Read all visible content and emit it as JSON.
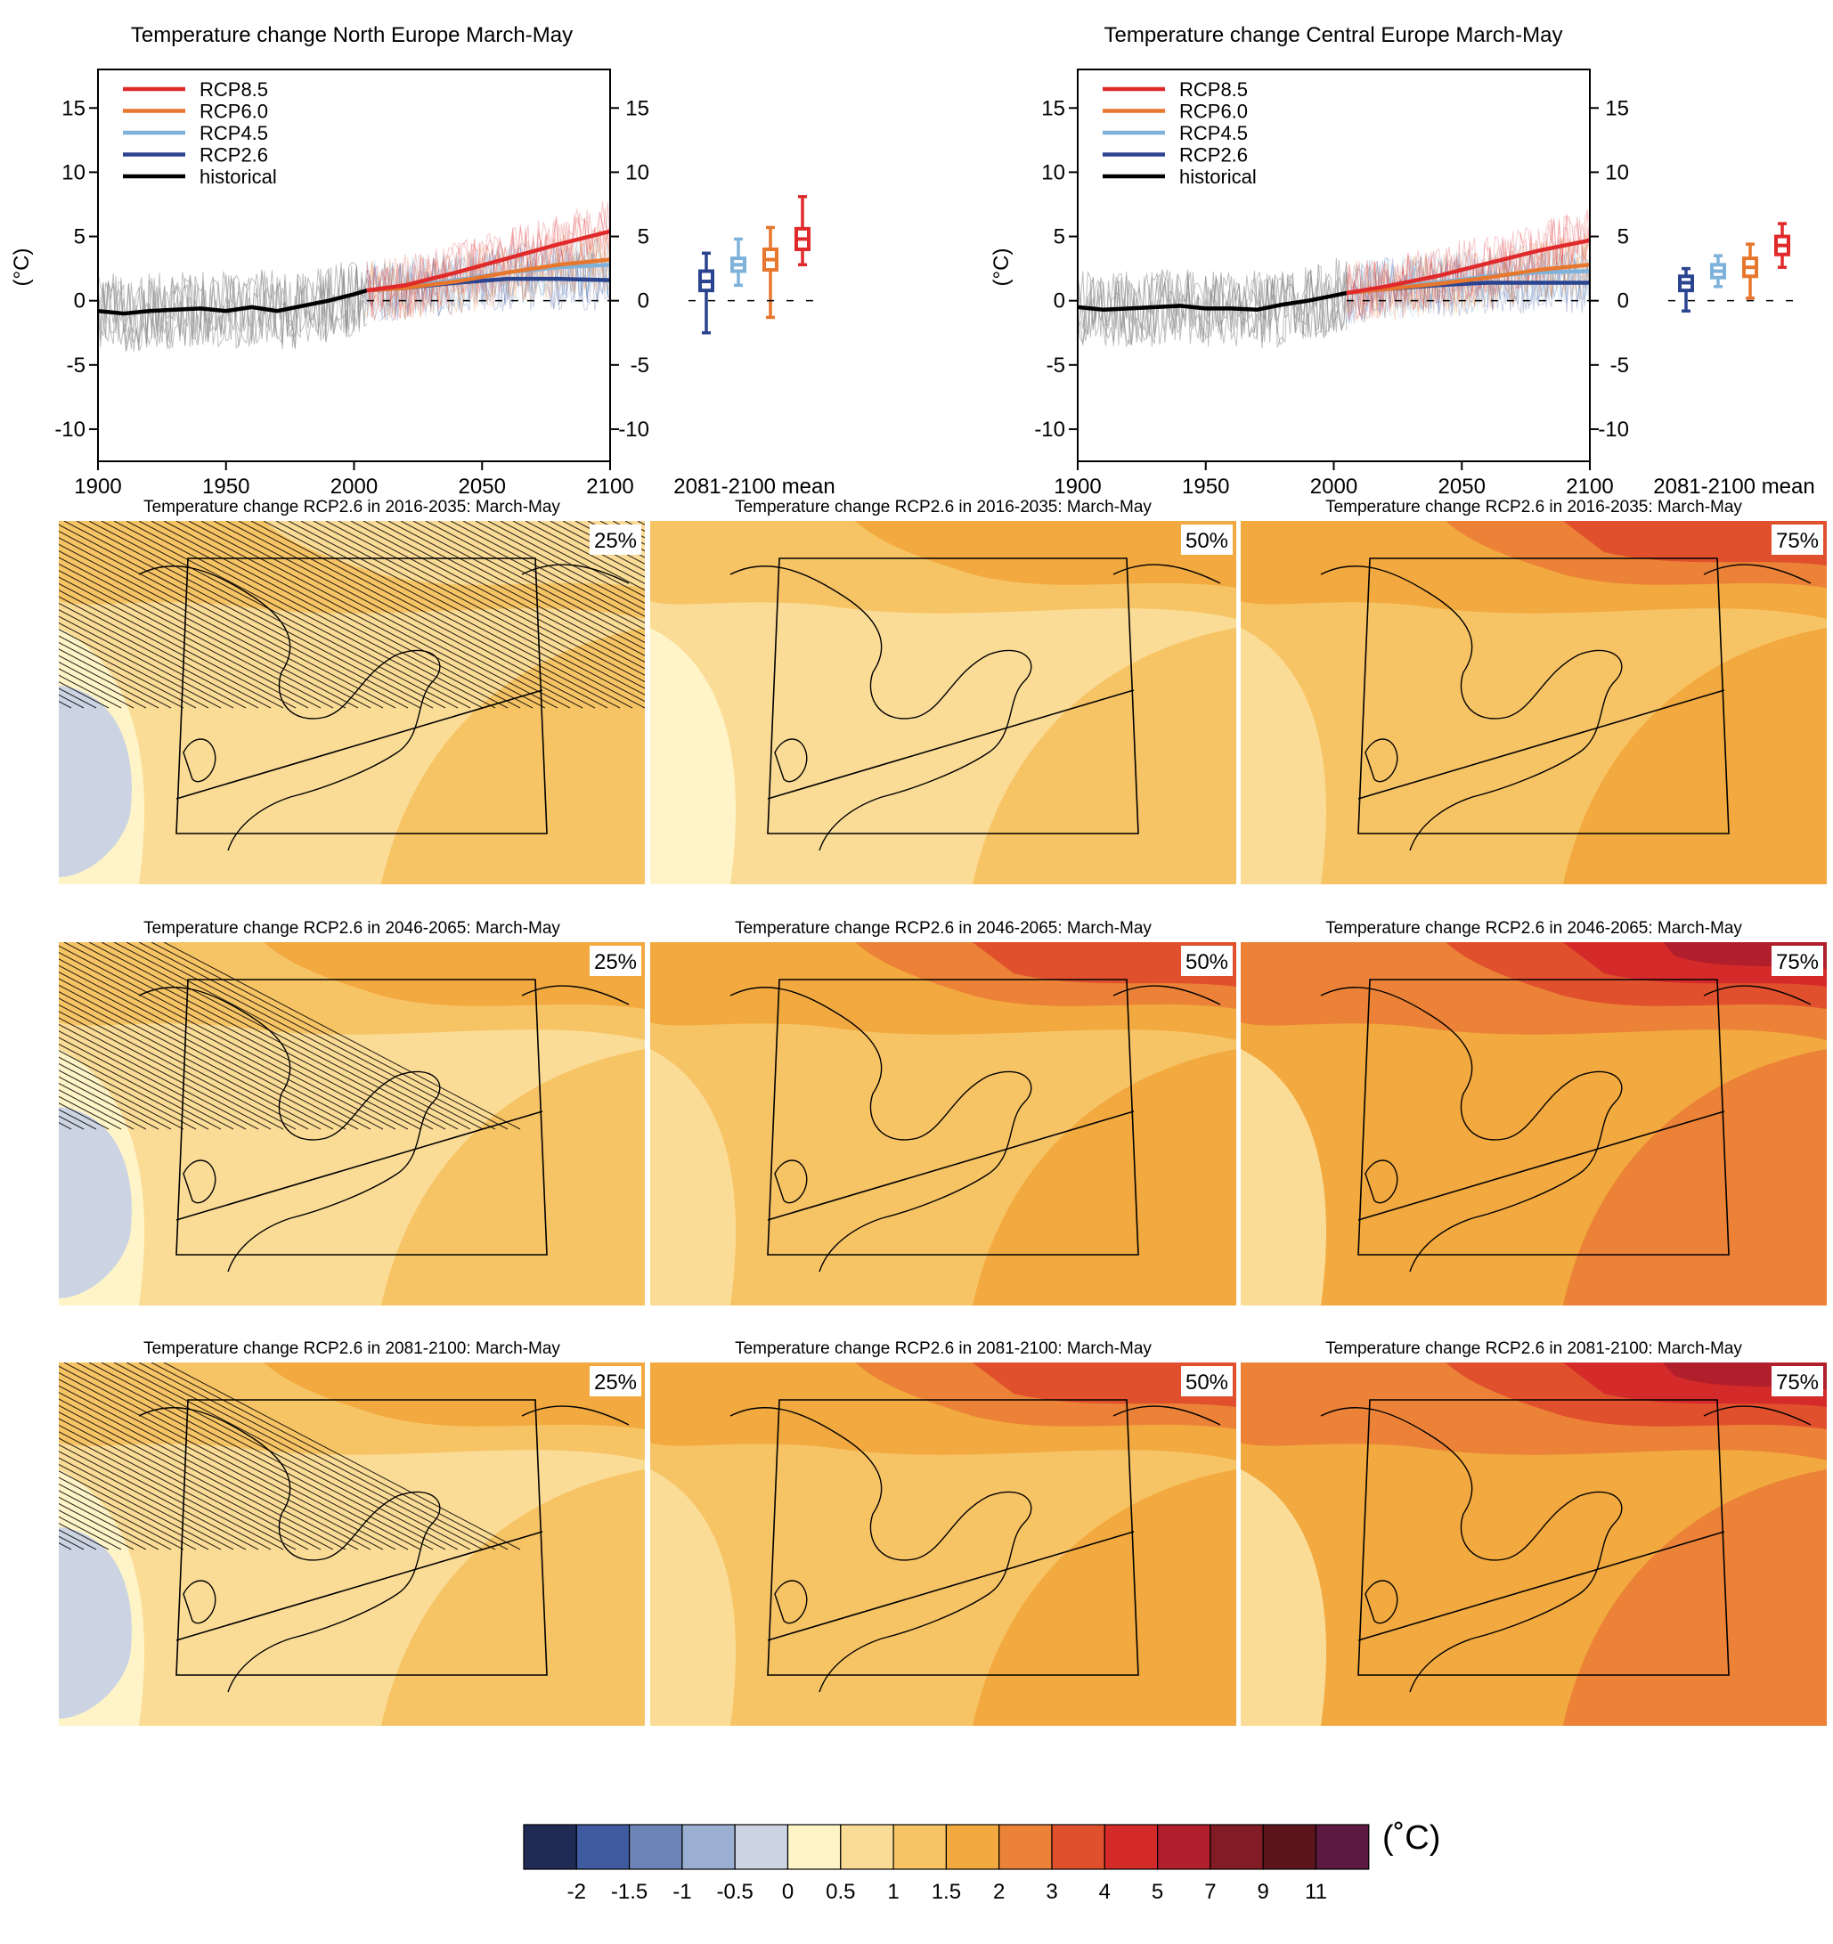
{
  "chart_data": [
    {
      "type": "line",
      "title": "Temperature change North Europe March-May",
      "ylabel": "(°C)",
      "xlabel": "",
      "x_ticks": [
        "1900",
        "1950",
        "2000",
        "2050",
        "2100"
      ],
      "y_ticks": [
        "15",
        "10",
        "5",
        "0",
        "-5",
        "-10"
      ],
      "xlim": [
        1900,
        2100
      ],
      "ylim": [
        -12.5,
        18
      ],
      "legend_position": "top-left",
      "legend": [
        "RCP8.5",
        "RCP6.0",
        "RCP4.5",
        "RCP2.6",
        "historical"
      ],
      "series": [
        {
          "name": "historical",
          "color": "#000000",
          "x": [
            1900,
            1910,
            1920,
            1930,
            1940,
            1950,
            1960,
            1970,
            1980,
            1990,
            2000,
            2005
          ],
          "y": [
            -0.8,
            -1.0,
            -0.8,
            -0.7,
            -0.6,
            -0.8,
            -0.5,
            -0.8,
            -0.4,
            0.0,
            0.5,
            0.8
          ]
        },
        {
          "name": "RCP2.6",
          "color": "#2b4490",
          "x": [
            2005,
            2020,
            2040,
            2060,
            2080,
            2100
          ],
          "y": [
            0.8,
            1.0,
            1.4,
            1.7,
            1.7,
            1.6
          ]
        },
        {
          "name": "RCP4.5",
          "color": "#7fb2da",
          "x": [
            2005,
            2020,
            2040,
            2060,
            2080,
            2100
          ],
          "y": [
            0.8,
            1.1,
            1.6,
            2.2,
            2.6,
            2.8
          ]
        },
        {
          "name": "RCP6.0",
          "color": "#e8772e",
          "x": [
            2005,
            2020,
            2040,
            2060,
            2080,
            2100
          ],
          "y": [
            0.8,
            1.0,
            1.5,
            2.2,
            2.8,
            3.2
          ]
        },
        {
          "name": "RCP8.5",
          "color": "#e0292b",
          "x": [
            2005,
            2020,
            2040,
            2060,
            2080,
            2100
          ],
          "y": [
            0.8,
            1.2,
            2.2,
            3.3,
            4.4,
            5.4
          ]
        }
      ],
      "boxplot_label": "2081-2100 mean",
      "boxplots": [
        {
          "name": "RCP2.6",
          "color": "#2b4490",
          "min": -2.5,
          "q1": 0.8,
          "median": 1.5,
          "q3": 2.3,
          "max": 3.7
        },
        {
          "name": "RCP4.5",
          "color": "#7fb2da",
          "min": 1.2,
          "q1": 2.3,
          "median": 2.8,
          "q3": 3.3,
          "max": 4.8
        },
        {
          "name": "RCP6.0",
          "color": "#e8772e",
          "min": -1.3,
          "q1": 2.4,
          "median": 3.2,
          "q3": 4.0,
          "max": 5.7
        },
        {
          "name": "RCP8.5",
          "color": "#e0292b",
          "min": 2.8,
          "q1": 4.0,
          "median": 4.8,
          "q3": 5.6,
          "max": 8.1
        }
      ]
    },
    {
      "type": "line",
      "title": "Temperature change Central Europe March-May",
      "ylabel": "(°C)",
      "xlabel": "",
      "x_ticks": [
        "1900",
        "1950",
        "2000",
        "2050",
        "2100"
      ],
      "y_ticks": [
        "15",
        "10",
        "5",
        "0",
        "-5",
        "-10"
      ],
      "xlim": [
        1900,
        2100
      ],
      "ylim": [
        -12.5,
        18
      ],
      "legend_position": "top-left",
      "legend": [
        "RCP8.5",
        "RCP6.0",
        "RCP4.5",
        "RCP2.6",
        "historical"
      ],
      "series": [
        {
          "name": "historical",
          "color": "#000000",
          "x": [
            1900,
            1910,
            1920,
            1930,
            1940,
            1950,
            1960,
            1970,
            1980,
            1990,
            2000,
            2005
          ],
          "y": [
            -0.5,
            -0.7,
            -0.6,
            -0.5,
            -0.4,
            -0.6,
            -0.6,
            -0.7,
            -0.3,
            0.0,
            0.4,
            0.6
          ]
        },
        {
          "name": "RCP2.6",
          "color": "#2b4490",
          "x": [
            2005,
            2020,
            2040,
            2060,
            2080,
            2100
          ],
          "y": [
            0.6,
            0.9,
            1.2,
            1.4,
            1.4,
            1.4
          ]
        },
        {
          "name": "RCP4.5",
          "color": "#7fb2da",
          "x": [
            2005,
            2020,
            2040,
            2060,
            2080,
            2100
          ],
          "y": [
            0.6,
            1.0,
            1.4,
            1.9,
            2.2,
            2.3
          ]
        },
        {
          "name": "RCP6.0",
          "color": "#e8772e",
          "x": [
            2005,
            2020,
            2040,
            2060,
            2080,
            2100
          ],
          "y": [
            0.6,
            0.9,
            1.3,
            1.8,
            2.4,
            2.8
          ]
        },
        {
          "name": "RCP8.5",
          "color": "#e0292b",
          "x": [
            2005,
            2020,
            2040,
            2060,
            2080,
            2100
          ],
          "y": [
            0.6,
            1.1,
            1.9,
            2.9,
            3.9,
            4.7
          ]
        }
      ],
      "boxplot_label": "2081-2100 mean",
      "boxplots": [
        {
          "name": "RCP2.6",
          "color": "#2b4490",
          "min": -0.8,
          "q1": 0.8,
          "median": 1.4,
          "q3": 1.9,
          "max": 2.5
        },
        {
          "name": "RCP4.5",
          "color": "#7fb2da",
          "min": 1.1,
          "q1": 1.8,
          "median": 2.3,
          "q3": 2.8,
          "max": 3.5
        },
        {
          "name": "RCP6.0",
          "color": "#e8772e",
          "min": 0.2,
          "q1": 1.9,
          "median": 2.6,
          "q3": 3.3,
          "max": 4.4
        },
        {
          "name": "RCP8.5",
          "color": "#e0292b",
          "min": 2.6,
          "q1": 3.6,
          "median": 4.3,
          "q3": 5.0,
          "max": 6.0
        }
      ]
    },
    {
      "type": "heatmap",
      "panels": [
        {
          "title": "Temperature change RCP2.6 in 2016-2035: March-May",
          "percentile": "25%",
          "level": 0
        },
        {
          "title": "Temperature change RCP2.6 in 2016-2035: March-May",
          "percentile": "50%",
          "level": 1
        },
        {
          "title": "Temperature change RCP2.6 in 2016-2035: March-May",
          "percentile": "75%",
          "level": 2
        },
        {
          "title": "Temperature change RCP2.6 in 2046-2065: March-May",
          "percentile": "25%",
          "level": 1
        },
        {
          "title": "Temperature change RCP2.6 in 2046-2065: March-May",
          "percentile": "50%",
          "level": 2
        },
        {
          "title": "Temperature change RCP2.6 in 2046-2065: March-May",
          "percentile": "75%",
          "level": 3
        },
        {
          "title": "Temperature change RCP2.6 in 2081-2100: March-May",
          "percentile": "25%",
          "level": 1
        },
        {
          "title": "Temperature change RCP2.6 in 2081-2100: March-May",
          "percentile": "50%",
          "level": 2
        },
        {
          "title": "Temperature change RCP2.6 in 2081-2100: March-May",
          "percentile": "75%",
          "level": 3
        }
      ],
      "colorbar": {
        "unit": "(˚C)",
        "ticks": [
          "-2",
          "-1.5",
          "-1",
          "-0.5",
          "0",
          "0.5",
          "1",
          "1.5",
          "2",
          "3",
          "4",
          "5",
          "7",
          "9",
          "11"
        ],
        "colors": [
          "#1f2a55",
          "#3f5a9e",
          "#6d84b6",
          "#9aafd1",
          "#ccd4e3",
          "#fef4c7",
          "#fbdc97",
          "#f7c465",
          "#f2a93f",
          "#eb8237",
          "#e0502d",
          "#d52a2a",
          "#b01f2b",
          "#821c24",
          "#5c141c",
          "#5c1a40"
        ]
      }
    }
  ]
}
